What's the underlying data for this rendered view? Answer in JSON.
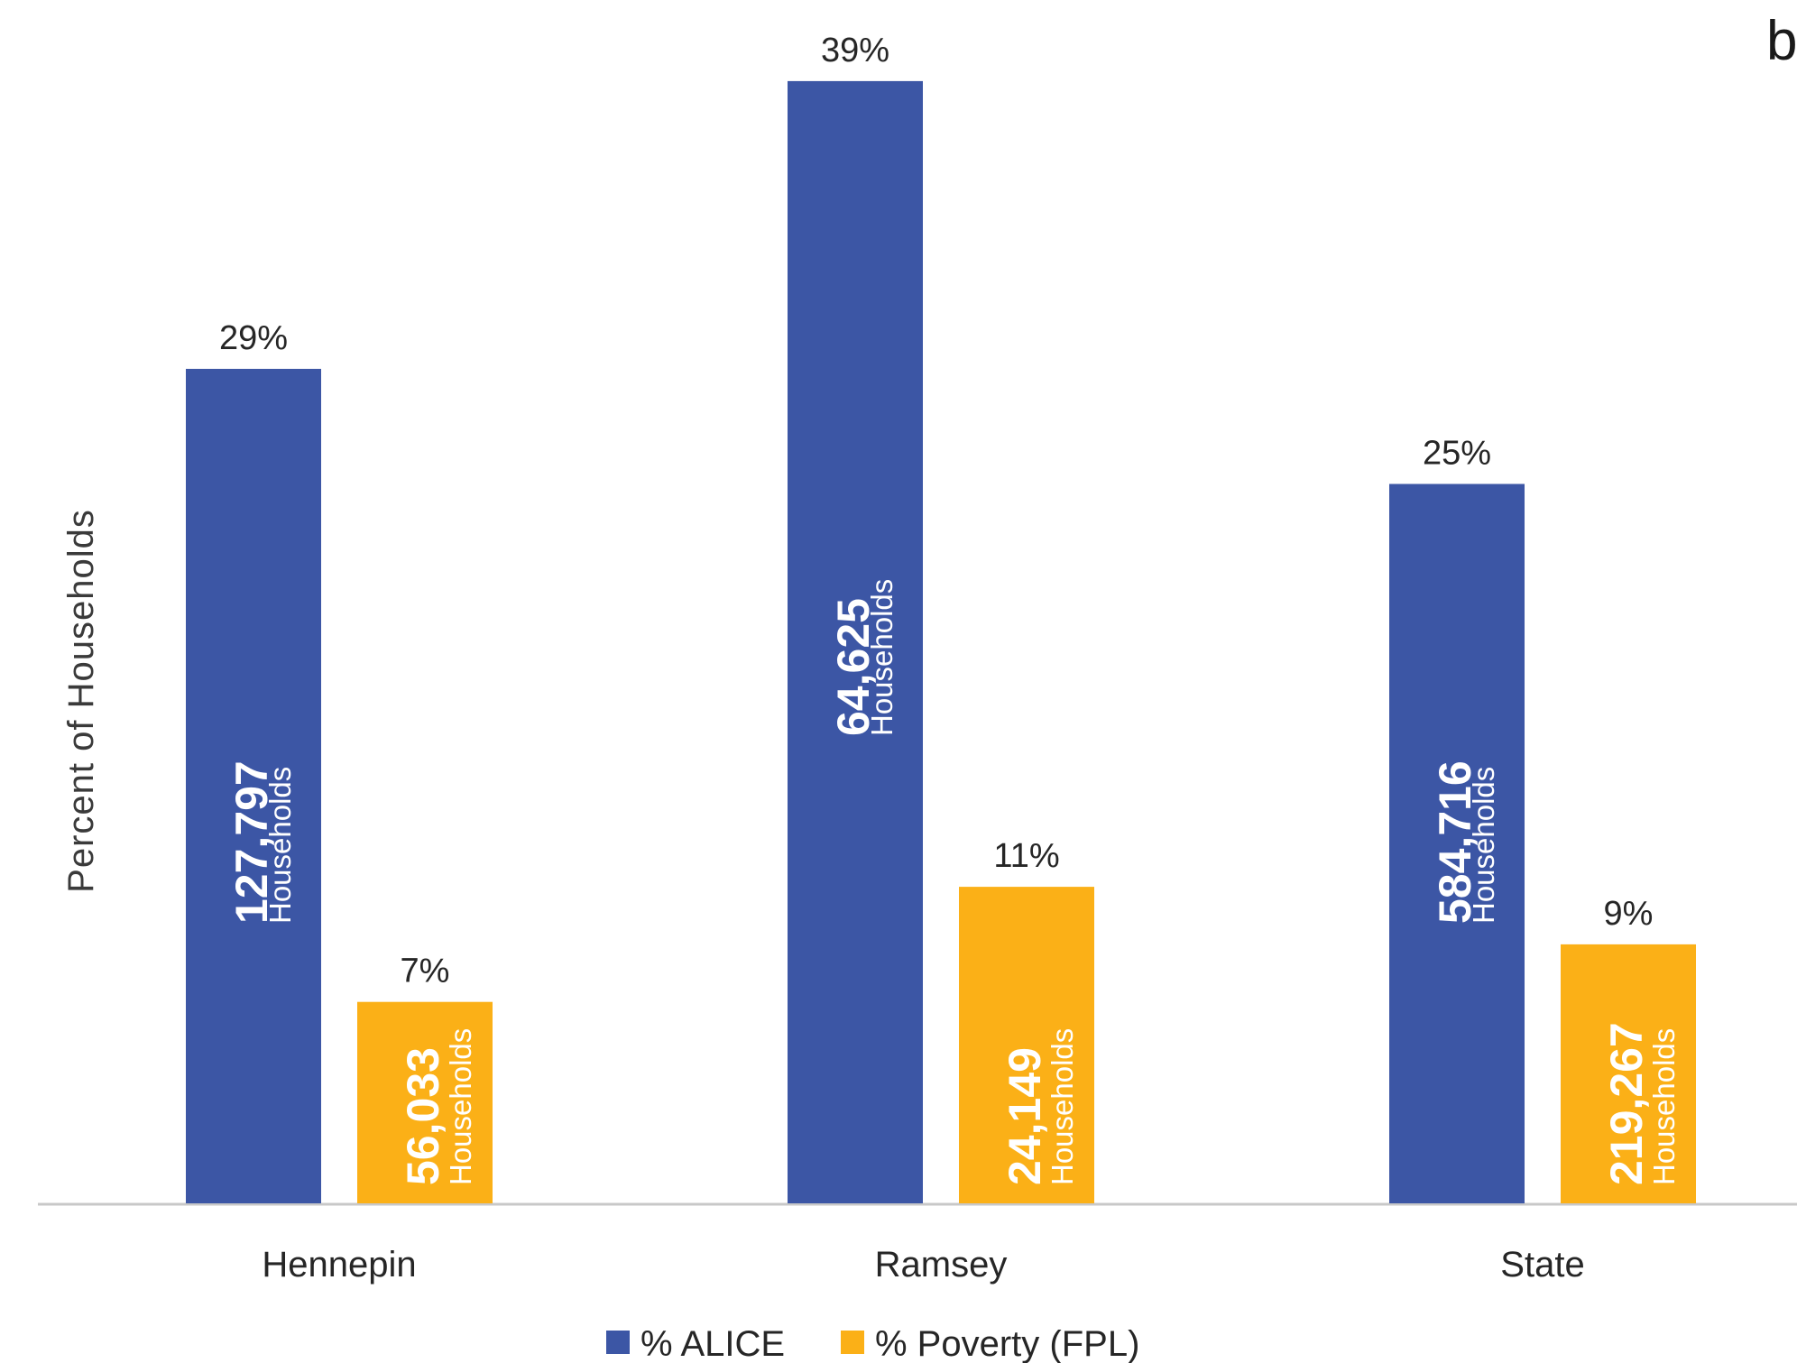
{
  "corner_label": "b",
  "chart_data": {
    "type": "bar",
    "title": "",
    "xlabel": "",
    "ylabel": "Percent  of Households",
    "ylim": [
      0,
      40
    ],
    "grid": false,
    "legend_position": "bottom",
    "categories": [
      "Hennepin",
      "Ramsey",
      "State"
    ],
    "series": [
      {
        "name": "%  ALICE",
        "color": "#3c56a5",
        "values": [
          29,
          39,
          25
        ],
        "value_labels": [
          "29%",
          "39%",
          "25%"
        ],
        "counts": [
          "127,797",
          "64,625",
          "584,716"
        ],
        "count_unit": "Households"
      },
      {
        "name": "% Poverty (FPL)",
        "color": "#fbb017",
        "values": [
          7,
          11,
          9
        ],
        "value_labels": [
          "7%",
          "11%",
          "9%"
        ],
        "counts": [
          "56,033",
          "24,149",
          "219,267"
        ],
        "count_unit": "Households"
      }
    ]
  }
}
